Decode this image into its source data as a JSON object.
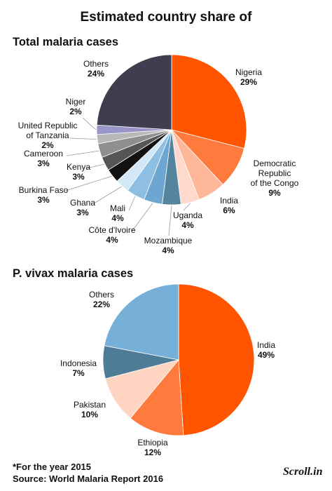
{
  "title": "Estimated country share of",
  "chart_data": [
    {
      "type": "pie",
      "title": "Total malaria cases",
      "categories": [
        "Nigeria",
        "Democratic Republic\nof the Congo",
        "India",
        "Uganda",
        "Mozambique",
        "Côte d'Ivoire",
        "Mali",
        "Ghana",
        "Burkina Faso",
        "Kenya",
        "Cameroon",
        "United Republic\nof Tanzania",
        "Niger",
        "Others"
      ],
      "values": [
        29,
        9,
        6,
        4,
        4,
        4,
        4,
        3,
        3,
        3,
        3,
        2,
        2,
        24
      ],
      "value_labels": [
        "29%",
        "9%",
        "6%",
        "4%",
        "4%",
        "4%",
        "4%",
        "3%",
        "3%",
        "3%",
        "3%",
        "2%",
        "2%",
        "24%"
      ],
      "colors": [
        "#ff5500",
        "#ff7a3d",
        "#ffb79a",
        "#ffd9cc",
        "#55849e",
        "#6ea6d2",
        "#8ebfe3",
        "#d3e8f7",
        "#111111",
        "#555555",
        "#8f8f8f",
        "#b8b8b8",
        "#9a95c8",
        "#3e3e50"
      ]
    },
    {
      "type": "pie",
      "title": "P. vivax malaria cases",
      "categories": [
        "India",
        "Ethiopia",
        "Pakistan",
        "Indonesia",
        "Others"
      ],
      "values": [
        49,
        12,
        10,
        7,
        22
      ],
      "value_labels": [
        "49%",
        "12%",
        "10%",
        "7%",
        "22%"
      ],
      "colors": [
        "#ff5500",
        "#ff7a3d",
        "#ffd4c0",
        "#4f7d98",
        "#76afd8"
      ]
    }
  ],
  "note": "*For the year 2015",
  "source": "Source: World Malaria Report 2016",
  "logo": "Scroll.in"
}
